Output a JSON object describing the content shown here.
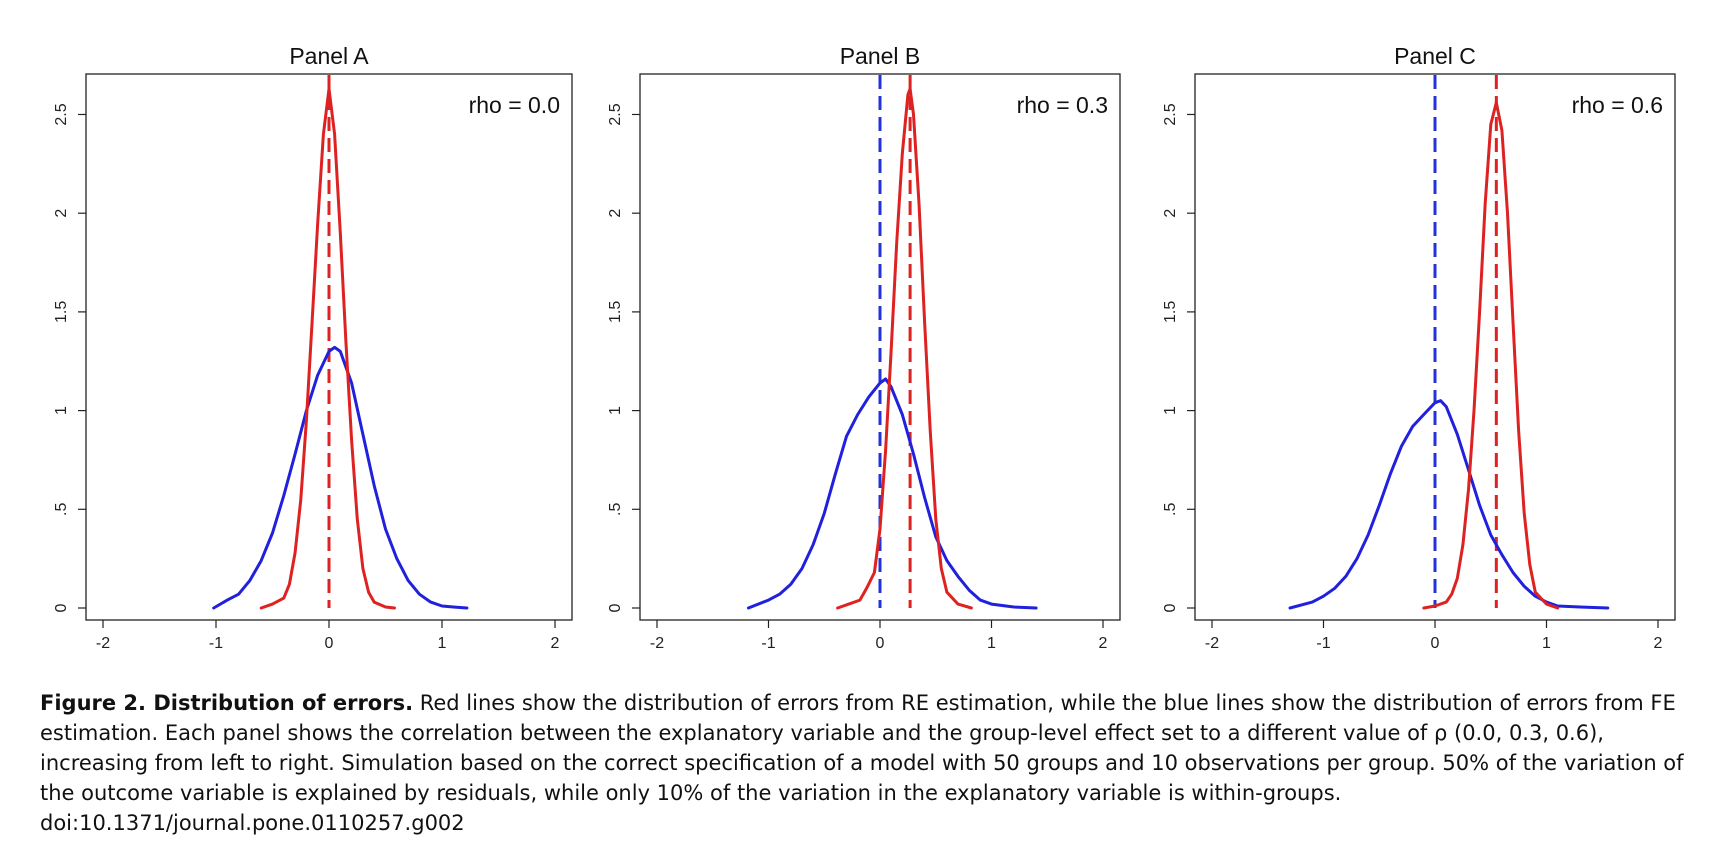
{
  "chart_data": [
    {
      "type": "line",
      "title": "Panel A",
      "annotation": "rho = 0.0",
      "xlim": [
        -2,
        2
      ],
      "ylim": [
        0,
        2.7
      ],
      "xticks": [
        "-2",
        "-1",
        "0",
        "1",
        "2"
      ],
      "yticks": [
        "0",
        ".5",
        "1",
        "1.5",
        "2",
        "2.5"
      ],
      "vlines": [
        {
          "x": 0.0,
          "color": "#2233dd",
          "style": "dashed"
        },
        {
          "x": 0.0,
          "color": "#dd2222",
          "style": "dashed"
        }
      ],
      "series": [
        {
          "color": "#2020dd",
          "x": [
            -1.02,
            -0.9,
            -0.8,
            -0.7,
            -0.6,
            -0.5,
            -0.4,
            -0.3,
            -0.2,
            -0.1,
            0.0,
            0.05,
            0.1,
            0.2,
            0.3,
            0.4,
            0.5,
            0.6,
            0.7,
            0.8,
            0.9,
            1.0,
            1.1,
            1.22
          ],
          "y": [
            0.0,
            0.04,
            0.07,
            0.14,
            0.24,
            0.38,
            0.57,
            0.78,
            1.0,
            1.18,
            1.3,
            1.32,
            1.3,
            1.14,
            0.88,
            0.62,
            0.4,
            0.25,
            0.14,
            0.07,
            0.03,
            0.01,
            0.005,
            0.0
          ]
        },
        {
          "color": "#dd2222",
          "x": [
            -0.6,
            -0.5,
            -0.4,
            -0.35,
            -0.3,
            -0.25,
            -0.2,
            -0.15,
            -0.1,
            -0.05,
            0.0,
            0.05,
            0.1,
            0.15,
            0.2,
            0.25,
            0.3,
            0.35,
            0.4,
            0.5,
            0.58
          ],
          "y": [
            0.0,
            0.02,
            0.05,
            0.12,
            0.28,
            0.55,
            0.95,
            1.45,
            1.95,
            2.4,
            2.63,
            2.4,
            1.9,
            1.35,
            0.85,
            0.45,
            0.2,
            0.08,
            0.03,
            0.005,
            0.0
          ]
        }
      ]
    },
    {
      "type": "line",
      "title": "Panel B",
      "annotation": "rho = 0.3",
      "xlim": [
        -2,
        2
      ],
      "ylim": [
        0,
        2.7
      ],
      "xticks": [
        "-2",
        "-1",
        "0",
        "1",
        "2"
      ],
      "yticks": [
        "0",
        ".5",
        "1",
        "1.5",
        "2",
        "2.5"
      ],
      "vlines": [
        {
          "x": 0.0,
          "color": "#2233dd",
          "style": "dashed"
        },
        {
          "x": 0.27,
          "color": "#dd2222",
          "style": "dashed"
        }
      ],
      "series": [
        {
          "color": "#2020dd",
          "x": [
            -1.18,
            -1.0,
            -0.9,
            -0.8,
            -0.7,
            -0.6,
            -0.5,
            -0.4,
            -0.3,
            -0.2,
            -0.1,
            0.0,
            0.05,
            0.1,
            0.2,
            0.3,
            0.4,
            0.5,
            0.6,
            0.7,
            0.8,
            0.9,
            1.0,
            1.2,
            1.4
          ],
          "y": [
            0.0,
            0.04,
            0.07,
            0.12,
            0.2,
            0.32,
            0.48,
            0.68,
            0.87,
            0.98,
            1.07,
            1.14,
            1.16,
            1.12,
            0.98,
            0.78,
            0.56,
            0.36,
            0.24,
            0.16,
            0.09,
            0.04,
            0.02,
            0.005,
            0.0
          ]
        },
        {
          "color": "#dd2222",
          "x": [
            -0.38,
            -0.28,
            -0.18,
            -0.12,
            -0.05,
            0.0,
            0.05,
            0.1,
            0.15,
            0.2,
            0.25,
            0.27,
            0.3,
            0.35,
            0.4,
            0.45,
            0.5,
            0.55,
            0.6,
            0.7,
            0.82
          ],
          "y": [
            0.0,
            0.02,
            0.04,
            0.1,
            0.18,
            0.4,
            0.8,
            1.3,
            1.85,
            2.3,
            2.6,
            2.63,
            2.5,
            2.05,
            1.45,
            0.9,
            0.45,
            0.2,
            0.08,
            0.02,
            0.0
          ]
        }
      ]
    },
    {
      "type": "line",
      "title": "Panel C",
      "annotation": "rho = 0.6",
      "xlim": [
        -2,
        2
      ],
      "ylim": [
        0,
        2.7
      ],
      "xticks": [
        "-2",
        "-1",
        "0",
        "1",
        "2"
      ],
      "yticks": [
        "0",
        ".5",
        "1",
        "1.5",
        "2",
        "2.5"
      ],
      "vlines": [
        {
          "x": 0.0,
          "color": "#2233dd",
          "style": "dashed"
        },
        {
          "x": 0.55,
          "color": "#dd2222",
          "style": "dashed"
        }
      ],
      "series": [
        {
          "color": "#2020dd",
          "x": [
            -1.3,
            -1.1,
            -1.0,
            -0.9,
            -0.8,
            -0.7,
            -0.6,
            -0.5,
            -0.4,
            -0.3,
            -0.2,
            -0.1,
            0.0,
            0.05,
            0.1,
            0.2,
            0.3,
            0.4,
            0.5,
            0.6,
            0.7,
            0.8,
            0.9,
            1.0,
            1.1,
            1.3,
            1.55
          ],
          "y": [
            0.0,
            0.03,
            0.06,
            0.1,
            0.16,
            0.25,
            0.37,
            0.52,
            0.68,
            0.82,
            0.92,
            0.98,
            1.04,
            1.05,
            1.02,
            0.88,
            0.7,
            0.52,
            0.37,
            0.27,
            0.18,
            0.11,
            0.06,
            0.03,
            0.01,
            0.005,
            0.0
          ]
        },
        {
          "color": "#dd2222",
          "x": [
            -0.1,
            0.0,
            0.1,
            0.15,
            0.2,
            0.25,
            0.3,
            0.35,
            0.4,
            0.45,
            0.5,
            0.55,
            0.6,
            0.65,
            0.7,
            0.75,
            0.8,
            0.85,
            0.9,
            1.0,
            1.1
          ],
          "y": [
            0.0,
            0.01,
            0.03,
            0.07,
            0.15,
            0.32,
            0.6,
            1.0,
            1.5,
            2.05,
            2.45,
            2.56,
            2.42,
            2.0,
            1.45,
            0.9,
            0.48,
            0.22,
            0.08,
            0.02,
            0.0
          ]
        }
      ]
    }
  ],
  "caption": {
    "title": "Figure 2. Distribution of errors.",
    "body": " Red lines show the distribution of errors from RE estimation, while the blue lines show the distribution of errors from FE estimation. Each panel shows the correlation between the explanatory variable and the group-level effect set to a different value of ρ (0.0, 0.3, 0.6), increasing from left to right. Simulation based on the correct specification of a model with 50 groups and 10 observations per group. 50% of the variation of the outcome variable is explained by residuals, while only 10% of the variation in the explanatory variable is within-groups.",
    "doi": "doi:10.1371/journal.pone.0110257.g002"
  }
}
